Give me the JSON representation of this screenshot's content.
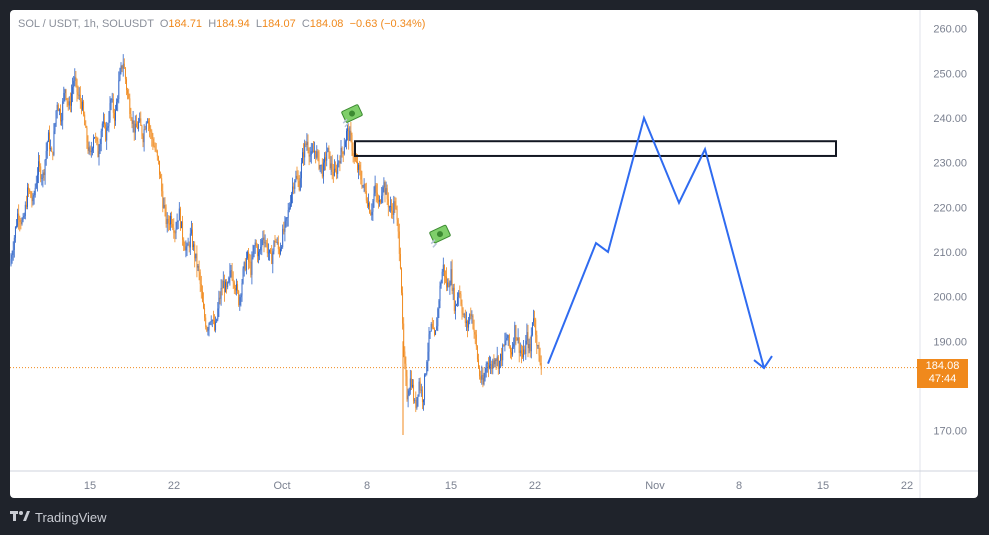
{
  "chart_data": {
    "type": "candlestick",
    "legend": {
      "symbol": "SOL / USDT, 1h, SOLUSDT",
      "open_label": "O",
      "open": "184.71",
      "high_label": "H",
      "high": "184.94",
      "low_label": "L",
      "low": "184.07",
      "close_label": "C",
      "close": "184.08",
      "change": "−0.63 (−0.34%)"
    },
    "y_ticks": [
      "260.00",
      "250.00",
      "240.00",
      "230.00",
      "220.00",
      "210.00",
      "200.00",
      "190.00",
      "170.00"
    ],
    "y_tick_values": [
      260,
      250,
      240,
      230,
      220,
      210,
      200,
      190,
      170
    ],
    "x_ticks": [
      "15",
      "22",
      "Oct",
      "8",
      "15",
      "22",
      "Nov",
      "8",
      "15",
      "22"
    ],
    "current_price": "184.08",
    "countdown": "47:44",
    "price_path": [
      [
        0,
        207
      ],
      [
        4,
        213
      ],
      [
        8,
        219
      ],
      [
        13,
        216
      ],
      [
        18,
        224
      ],
      [
        23,
        221
      ],
      [
        28,
        229
      ],
      [
        33,
        227
      ],
      [
        38,
        236
      ],
      [
        42,
        231
      ],
      [
        47,
        244
      ],
      [
        51,
        240
      ],
      [
        55,
        247
      ],
      [
        59,
        242
      ],
      [
        64,
        249
      ],
      [
        68,
        245
      ],
      [
        72,
        243
      ],
      [
        76,
        236
      ],
      [
        80,
        231
      ],
      [
        84,
        237
      ],
      [
        88,
        232
      ],
      [
        92,
        239
      ],
      [
        96,
        236
      ],
      [
        101,
        244
      ],
      [
        105,
        240
      ],
      [
        109,
        248
      ],
      [
        113,
        253
      ],
      [
        117,
        246
      ],
      [
        121,
        241
      ],
      [
        125,
        237
      ],
      [
        129,
        239
      ],
      [
        133,
        236
      ],
      [
        137,
        241
      ],
      [
        141,
        236
      ],
      [
        145,
        233
      ],
      [
        149,
        229
      ],
      [
        153,
        221
      ],
      [
        157,
        216
      ],
      [
        161,
        218
      ],
      [
        165,
        215
      ],
      [
        169,
        219
      ],
      [
        173,
        213
      ],
      [
        177,
        210
      ],
      [
        181,
        214
      ],
      [
        185,
        209
      ],
      [
        189,
        205
      ],
      [
        193,
        197
      ],
      [
        197,
        193
      ],
      [
        201,
        196
      ],
      [
        205,
        192
      ],
      [
        209,
        199
      ],
      [
        213,
        203
      ],
      [
        217,
        201
      ],
      [
        221,
        206
      ],
      [
        225,
        203
      ],
      [
        229,
        199
      ],
      [
        233,
        205
      ],
      [
        237,
        209
      ],
      [
        241,
        206
      ],
      [
        245,
        212
      ],
      [
        249,
        209
      ],
      [
        253,
        214
      ],
      [
        257,
        211
      ],
      [
        261,
        208
      ],
      [
        265,
        213
      ],
      [
        269,
        210
      ],
      [
        273,
        214
      ],
      [
        277,
        217
      ],
      [
        281,
        223
      ],
      [
        285,
        227
      ],
      [
        289,
        225
      ],
      [
        293,
        232
      ],
      [
        297,
        235
      ],
      [
        301,
        231
      ],
      [
        305,
        233
      ],
      [
        309,
        230
      ],
      [
        313,
        228
      ],
      [
        317,
        233
      ],
      [
        321,
        229
      ],
      [
        325,
        227
      ],
      [
        329,
        231
      ],
      [
        333,
        233
      ],
      [
        337,
        237
      ],
      [
        341,
        235
      ],
      [
        345,
        230
      ],
      [
        349,
        228
      ],
      [
        353,
        225
      ],
      [
        357,
        222
      ],
      [
        361,
        219
      ],
      [
        365,
        224
      ],
      [
        369,
        220
      ],
      [
        373,
        226
      ],
      [
        377,
        222
      ],
      [
        381,
        219
      ],
      [
        385,
        221
      ],
      [
        389,
        212
      ],
      [
        391,
        206
      ],
      [
        393,
        189
      ],
      [
        395,
        183
      ],
      [
        397,
        178
      ],
      [
        401,
        182
      ],
      [
        405,
        175
      ],
      [
        409,
        181
      ],
      [
        413,
        177
      ],
      [
        417,
        187
      ],
      [
        421,
        193
      ],
      [
        425,
        190
      ],
      [
        429,
        200
      ],
      [
        433,
        207
      ],
      [
        437,
        202
      ],
      [
        441,
        205
      ],
      [
        445,
        197
      ],
      [
        449,
        202
      ],
      [
        453,
        196
      ],
      [
        457,
        193
      ],
      [
        461,
        197
      ],
      [
        465,
        191
      ],
      [
        469,
        183
      ],
      [
        473,
        180
      ],
      [
        477,
        186
      ],
      [
        481,
        184
      ],
      [
        485,
        187
      ],
      [
        489,
        185
      ],
      [
        493,
        188
      ],
      [
        497,
        191
      ],
      [
        501,
        187
      ],
      [
        505,
        193
      ],
      [
        509,
        189
      ],
      [
        513,
        186
      ],
      [
        517,
        191
      ],
      [
        520,
        187
      ],
      [
        523,
        197
      ],
      [
        526,
        192
      ],
      [
        529,
        186
      ],
      [
        532,
        184.5
      ]
    ],
    "projection": [
      [
        538,
        185
      ],
      [
        586,
        212
      ],
      [
        598,
        210
      ],
      [
        634,
        240
      ],
      [
        669,
        221
      ],
      [
        695,
        233
      ],
      [
        754,
        184
      ]
    ],
    "resistance_zone": {
      "x_start": 345,
      "x_end": 826,
      "low": 231.5,
      "high": 234.8
    },
    "markers": [
      {
        "x": 342,
        "price": 241,
        "icon": "money-icon"
      },
      {
        "x": 430,
        "price": 214,
        "icon": "money-icon"
      }
    ],
    "colors": {
      "up": "#2d63c8",
      "down": "#f0891c",
      "projection": "#2f6bf0",
      "price_line": "#f0891c"
    }
  },
  "footer": {
    "brand": "TradingView"
  }
}
